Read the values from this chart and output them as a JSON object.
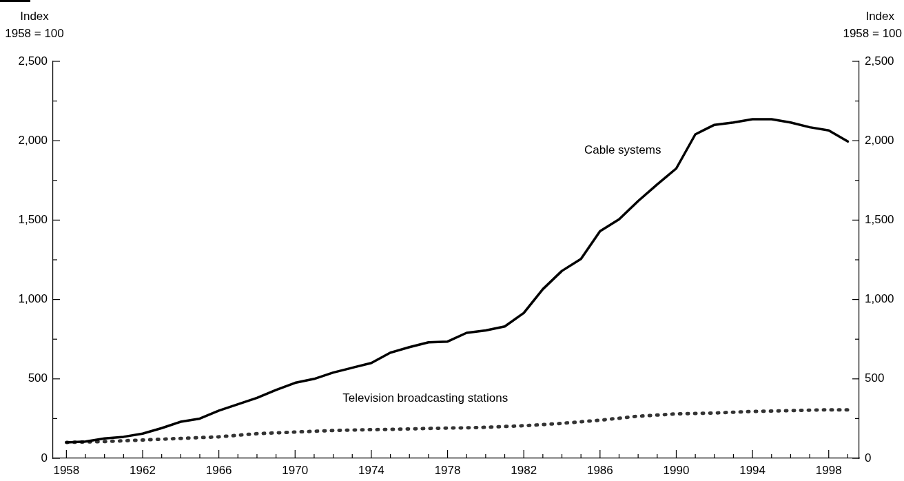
{
  "chart_data": {
    "type": "line",
    "ylabel": "Index\n1958 = 100",
    "y2label": "Index\n1958 = 100",
    "x": [
      1958,
      1959,
      1960,
      1961,
      1962,
      1963,
      1964,
      1965,
      1966,
      1967,
      1968,
      1969,
      1970,
      1971,
      1972,
      1973,
      1974,
      1975,
      1976,
      1977,
      1978,
      1979,
      1980,
      1981,
      1982,
      1983,
      1984,
      1985,
      1986,
      1987,
      1988,
      1989,
      1990,
      1991,
      1992,
      1993,
      1994,
      1995,
      1996,
      1997,
      1998,
      1999
    ],
    "series": [
      {
        "name": "Cable systems",
        "color": "#000000",
        "line_style": "solid",
        "values": [
          100,
          105,
          125,
          135,
          155,
          190,
          230,
          250,
          300,
          340,
          380,
          430,
          475,
          500,
          540,
          570,
          600,
          665,
          700,
          730,
          735,
          790,
          805,
          830,
          915,
          1065,
          1180,
          1255,
          1430,
          1505,
          1620,
          1725,
          1825,
          2040,
          2100,
          2115,
          2135,
          2135,
          2115,
          2085,
          2065,
          1995
        ]
      },
      {
        "name": "Television broadcasting stations",
        "color": "#333333",
        "line_style": "dotted",
        "values": [
          100,
          102,
          105,
          110,
          115,
          120,
          125,
          130,
          135,
          145,
          155,
          160,
          165,
          170,
          175,
          178,
          180,
          182,
          185,
          188,
          190,
          192,
          195,
          200,
          205,
          212,
          220,
          230,
          240,
          252,
          265,
          272,
          280,
          282,
          285,
          290,
          295,
          297,
          300,
          303,
          305,
          305
        ]
      }
    ],
    "xlim": [
      1957.3,
      1999.6
    ],
    "xticks": [
      1958,
      {
        "value": 1959,
        "label": null
      },
      {
        "value": 1960,
        "label": null
      },
      {
        "value": 1961,
        "label": null
      },
      1962,
      {
        "value": 1963,
        "label": null
      },
      {
        "value": 1964,
        "label": null
      },
      {
        "value": 1965,
        "label": null
      },
      1966,
      {
        "value": 1967,
        "label": null
      },
      {
        "value": 1968,
        "label": null
      },
      {
        "value": 1969,
        "label": null
      },
      1970,
      {
        "value": 1971,
        "label": null
      },
      {
        "value": 1972,
        "label": null
      },
      {
        "value": 1973,
        "label": null
      },
      1974,
      {
        "value": 1975,
        "label": null
      },
      {
        "value": 1976,
        "label": null
      },
      {
        "value": 1977,
        "label": null
      },
      1978,
      {
        "value": 1979,
        "label": null
      },
      {
        "value": 1980,
        "label": null
      },
      {
        "value": 1981,
        "label": null
      },
      1982,
      {
        "value": 1983,
        "label": null
      },
      {
        "value": 1984,
        "label": null
      },
      {
        "value": 1985,
        "label": null
      },
      1986,
      {
        "value": 1987,
        "label": null
      },
      {
        "value": 1988,
        "label": null
      },
      {
        "value": 1989,
        "label": null
      },
      1990,
      {
        "value": 1991,
        "label": null
      },
      {
        "value": 1992,
        "label": null
      },
      {
        "value": 1993,
        "label": null
      },
      1994,
      {
        "value": 1995,
        "label": null
      },
      {
        "value": 1996,
        "label": null
      },
      {
        "value": 1997,
        "label": null
      },
      1998,
      {
        "value": 1999,
        "label": null
      }
    ],
    "ylim": [
      0,
      2500
    ],
    "yticks": [
      0,
      {
        "value": 250,
        "label": null
      },
      500,
      {
        "value": 750,
        "label": null
      },
      {
        "value": 1000,
        "label": "1,000"
      },
      {
        "value": 1250,
        "label": null
      },
      {
        "value": 1500,
        "label": "1,500"
      },
      {
        "value": 1750,
        "label": null
      },
      {
        "value": 2000,
        "label": "2,000"
      },
      {
        "value": 2250,
        "label": null
      },
      {
        "value": 2500,
        "label": "2,500"
      }
    ],
    "y2lim": [
      0,
      2500
    ],
    "y2ticks": [
      0,
      {
        "value": 250,
        "label": null
      },
      500,
      {
        "value": 750,
        "label": null
      },
      {
        "value": 1000,
        "label": "1,000"
      },
      {
        "value": 1250,
        "label": null
      },
      {
        "value": 1500,
        "label": "1,500"
      },
      {
        "value": 1750,
        "label": null
      },
      {
        "value": 2000,
        "label": "2,000"
      },
      {
        "value": 2250,
        "label": null
      },
      {
        "value": 2500,
        "label": "2,500"
      }
    ],
    "grid": false,
    "legend": false,
    "marker": "none"
  }
}
